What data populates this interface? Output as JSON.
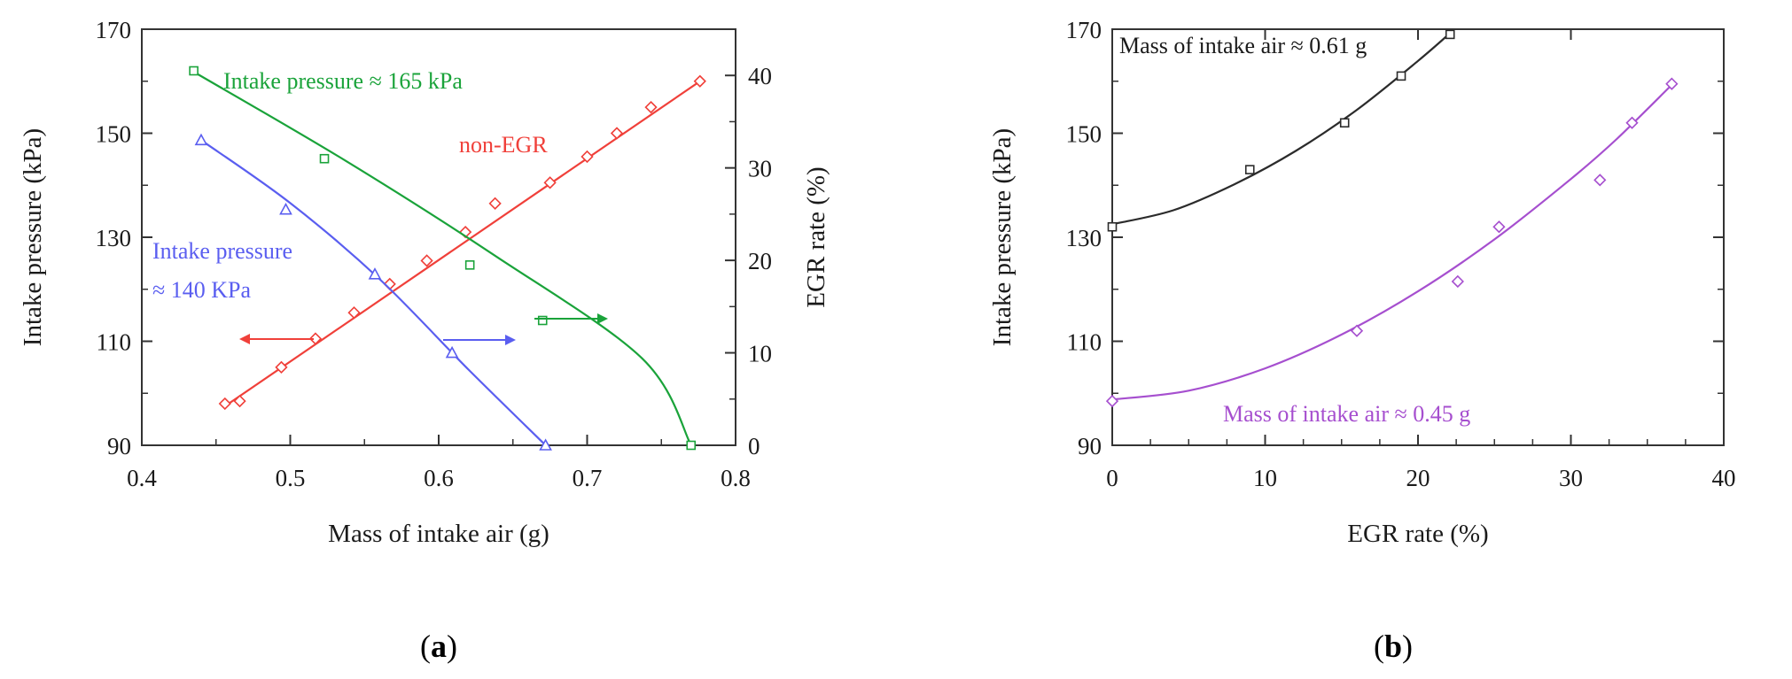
{
  "panels": {
    "a": {
      "label_open": "(",
      "label_letter": "a",
      "label_close": ")"
    },
    "b": {
      "label_open": "(",
      "label_letter": "b",
      "label_close": ")"
    }
  },
  "colors": {
    "green": "#1aa33a",
    "red": "#f0403a",
    "blue": "#5a5ef0",
    "black": "#2b2b2b",
    "purple": "#a64fcf",
    "axis": "#333333"
  },
  "chart_data": [
    {
      "id": "a",
      "type": "scatter",
      "title": "",
      "xlabel": "Mass of intake air (g)",
      "ylabel": "Intake pressure (kPa)",
      "y2label": "EGR rate (%)",
      "xlim": [
        0.4,
        0.8
      ],
      "ylim": [
        90,
        170
      ],
      "y2lim": [
        0,
        45
      ],
      "xticks": [
        "0.4",
        "0.5",
        "0.6",
        "0.7",
        "0.8"
      ],
      "yticks": [
        "90",
        "110",
        "130",
        "150",
        "170"
      ],
      "y2ticks": [
        "0",
        "10",
        "20",
        "30",
        "40"
      ],
      "series": [
        {
          "name": "non-EGR",
          "axis": "left",
          "marker": "diamond",
          "color": "red",
          "x": [
            0.456,
            0.466,
            0.494,
            0.517,
            0.543,
            0.567,
            0.592,
            0.618,
            0.638,
            0.675,
            0.7,
            0.72,
            0.743,
            0.776
          ],
          "y": [
            98,
            98.5,
            105,
            110.5,
            115.5,
            121,
            125.5,
            131,
            136.5,
            140.5,
            145.5,
            150,
            155,
            160
          ],
          "fit": {
            "x": [
              0.456,
              0.776
            ],
            "y": [
              97.5,
              160
            ]
          }
        },
        {
          "name": "Intake pressure ≈ 165 kPa",
          "axis": "right",
          "marker": "square",
          "color": "green",
          "x": [
            0.435,
            0.523,
            0.621,
            0.67,
            0.77
          ],
          "y": [
            40.5,
            31,
            19.5,
            13.5,
            0
          ],
          "fit": {
            "x": [
              0.437,
              0.537,
              0.637,
              0.737,
              0.77
            ],
            "y": [
              40.2,
              30.8,
              20.6,
              9.4,
              0
            ]
          }
        },
        {
          "name": "Intake pressure ≈ 140 KPa",
          "axis": "right",
          "marker": "triangle",
          "color": "blue",
          "x": [
            0.44,
            0.497,
            0.557,
            0.609,
            0.672
          ],
          "y": [
            33,
            25.5,
            18.5,
            10,
            0
          ],
          "fit": {
            "x": [
              0.44,
              0.5,
              0.56,
              0.62,
              0.672
            ],
            "y": [
              33,
              26.2,
              18,
              8.2,
              0
            ]
          }
        }
      ],
      "annotations": {
        "green_label": "Intake pressure ≈ 165 kPa",
        "red_label": "non-EGR",
        "blue_label_line1": "Intake pressure",
        "blue_label_line2": "≈ 140 KPa"
      },
      "arrows": [
        {
          "series": "non-EGR",
          "direction": "left",
          "points_to": "left axis"
        },
        {
          "series": "Intake pressure ≈ 140 KPa",
          "direction": "right",
          "points_to": "right axis"
        },
        {
          "series": "Intake pressure ≈ 165 kPa",
          "direction": "right",
          "points_to": "right axis"
        }
      ]
    },
    {
      "id": "b",
      "type": "scatter",
      "title": "",
      "xlabel": "EGR rate (%)",
      "ylabel": "Intake pressure (kPa)",
      "xlim": [
        0,
        40
      ],
      "ylim": [
        90,
        170
      ],
      "xticks": [
        "0",
        "10",
        "20",
        "30",
        "40"
      ],
      "yticks": [
        "90",
        "110",
        "130",
        "150",
        "170"
      ],
      "series": [
        {
          "name": "Mass of intake air ≈ 0.61 g",
          "marker": "square",
          "color": "black",
          "x": [
            0,
            9,
            15.2,
            18.9,
            22.1
          ],
          "y": [
            132,
            143,
            152,
            161,
            169
          ],
          "fit": {
            "x": [
              0,
              4,
              8,
              12,
              16,
              20,
              22.2
            ],
            "y": [
              132.5,
              135.2,
              140.2,
              146.6,
              154.5,
              163.9,
              169.5
            ]
          }
        },
        {
          "name": "Mass of intake air ≈ 0.45 g",
          "marker": "diamond",
          "color": "purple",
          "x": [
            0,
            16,
            22.6,
            25.3,
            31.9,
            34,
            36.6
          ],
          "y": [
            98.5,
            112,
            121.5,
            132,
            141,
            152,
            159.5
          ],
          "fit": {
            "x": [
              0,
              5,
              10,
              15,
              20,
              25,
              30,
              33,
              36.6
            ],
            "y": [
              98.8,
              100.5,
              104.8,
              111.3,
              119.6,
              129.6,
              141.2,
              148.9,
              159.3
            ]
          }
        }
      ],
      "annotations": {
        "black_label": "Mass of intake air ≈ 0.61 g",
        "purple_label": "Mass of intake air ≈ 0.45 g"
      }
    }
  ]
}
